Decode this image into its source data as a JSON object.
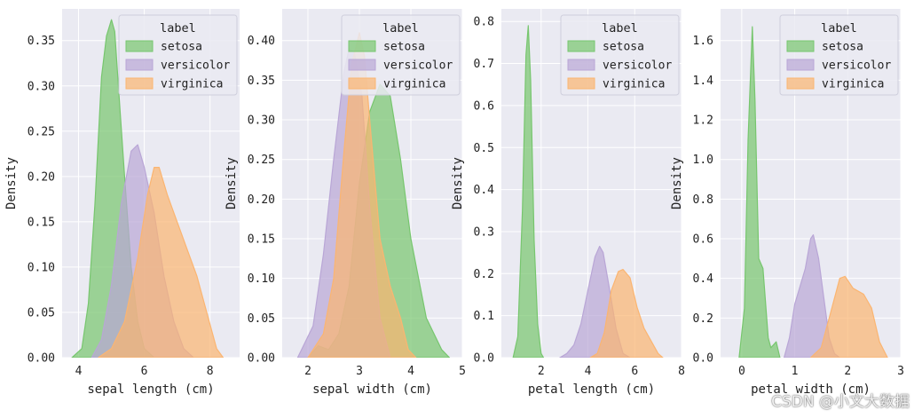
{
  "colors": {
    "setosa": "#77c66e",
    "versicolor": "#b9a6d6",
    "virginica": "#fbb571",
    "panel_bg": "#eaeaf2",
    "grid": "#ffffff"
  },
  "watermark": "CSDN @小文大数据",
  "chart_data": [
    {
      "type": "area",
      "xlabel": "sepal length (cm)",
      "ylabel": "Density",
      "xlim": [
        3.5,
        8.9
      ],
      "ylim": [
        0,
        0.385
      ],
      "xticks": [
        4,
        6,
        8
      ],
      "yticks": [
        0,
        0.05,
        0.1,
        0.15,
        0.2,
        0.25,
        0.3,
        0.35
      ],
      "ytick_labels": [
        "0.00",
        "0.05",
        "0.10",
        "0.15",
        "0.20",
        "0.25",
        "0.30",
        "0.35"
      ],
      "legend": {
        "title": "label",
        "position": "top-right",
        "entries": [
          "setosa",
          "versicolor",
          "virginica"
        ]
      },
      "series": [
        {
          "name": "setosa",
          "x": [
            3.8,
            4.1,
            4.3,
            4.5,
            4.7,
            4.85,
            5.0,
            5.1,
            5.25,
            5.4,
            5.6,
            5.8,
            6.0,
            6.3
          ],
          "y": [
            0,
            0.01,
            0.06,
            0.17,
            0.31,
            0.355,
            0.373,
            0.36,
            0.28,
            0.2,
            0.1,
            0.04,
            0.01,
            0
          ]
        },
        {
          "name": "versicolor",
          "x": [
            4.4,
            4.7,
            5.0,
            5.3,
            5.6,
            5.8,
            6.0,
            6.3,
            6.6,
            6.9,
            7.2,
            7.5
          ],
          "y": [
            0,
            0.02,
            0.08,
            0.17,
            0.228,
            0.235,
            0.21,
            0.16,
            0.09,
            0.04,
            0.01,
            0
          ]
        },
        {
          "name": "virginica",
          "x": [
            4.6,
            5.0,
            5.4,
            5.8,
            6.1,
            6.3,
            6.45,
            6.7,
            7.0,
            7.3,
            7.6,
            7.9,
            8.2,
            8.4
          ],
          "y": [
            0,
            0.01,
            0.04,
            0.11,
            0.18,
            0.21,
            0.21,
            0.18,
            0.15,
            0.12,
            0.09,
            0.05,
            0.01,
            0
          ]
        }
      ]
    },
    {
      "type": "area",
      "xlabel": "sepal width (cm)",
      "ylabel": "Density",
      "xlim": [
        1.5,
        5.0
      ],
      "ylim": [
        0,
        0.44
      ],
      "xticks": [
        2,
        3,
        4,
        5
      ],
      "yticks": [
        0,
        0.05,
        0.1,
        0.15,
        0.2,
        0.25,
        0.3,
        0.35,
        0.4
      ],
      "ytick_labels": [
        "0.00",
        "0.05",
        "0.10",
        "0.15",
        "0.20",
        "0.25",
        "0.30",
        "0.35",
        "0.40"
      ],
      "legend": {
        "title": "label",
        "position": "top-right",
        "entries": [
          "setosa",
          "versicolor",
          "virginica"
        ]
      },
      "series": [
        {
          "name": "setosa",
          "x": [
            2.0,
            2.2,
            2.4,
            2.6,
            2.8,
            3.0,
            3.2,
            3.4,
            3.6,
            3.8,
            4.0,
            4.3,
            4.6,
            4.75
          ],
          "y": [
            0,
            0.015,
            0.01,
            0.03,
            0.09,
            0.22,
            0.31,
            0.345,
            0.33,
            0.25,
            0.15,
            0.05,
            0.01,
            0
          ]
        },
        {
          "name": "versicolor",
          "x": [
            1.8,
            2.1,
            2.3,
            2.5,
            2.7,
            2.8,
            2.9,
            3.05,
            3.2,
            3.4,
            3.6
          ],
          "y": [
            0,
            0.04,
            0.13,
            0.25,
            0.36,
            0.39,
            0.385,
            0.33,
            0.19,
            0.05,
            0
          ]
        },
        {
          "name": "virginica",
          "x": [
            2.0,
            2.3,
            2.5,
            2.7,
            2.85,
            3.0,
            3.1,
            3.2,
            3.4,
            3.6,
            3.8,
            3.95,
            4.1
          ],
          "y": [
            0,
            0.03,
            0.1,
            0.26,
            0.37,
            0.41,
            0.38,
            0.3,
            0.15,
            0.09,
            0.05,
            0.01,
            0
          ]
        }
      ]
    },
    {
      "type": "area",
      "xlabel": "petal length (cm)",
      "ylabel": "Density",
      "xlim": [
        0.3,
        8.0
      ],
      "ylim": [
        0,
        0.83
      ],
      "xticks": [
        2,
        4,
        6,
        8
      ],
      "yticks": [
        0,
        0.1,
        0.2,
        0.3,
        0.4,
        0.5,
        0.6,
        0.7,
        0.8
      ],
      "ytick_labels": [
        "0.0",
        "0.1",
        "0.2",
        "0.3",
        "0.4",
        "0.5",
        "0.6",
        "0.7",
        "0.8"
      ],
      "legend": {
        "title": "label",
        "position": "top-right",
        "entries": [
          "setosa",
          "versicolor",
          "virginica"
        ]
      },
      "series": [
        {
          "name": "setosa",
          "x": [
            0.8,
            1.0,
            1.2,
            1.35,
            1.45,
            1.55,
            1.7,
            1.85,
            2.0,
            2.1
          ],
          "y": [
            0,
            0.05,
            0.35,
            0.72,
            0.79,
            0.66,
            0.28,
            0.08,
            0.01,
            0
          ]
        },
        {
          "name": "versicolor",
          "x": [
            2.8,
            3.1,
            3.4,
            3.7,
            4.0,
            4.3,
            4.5,
            4.65,
            4.9,
            5.2,
            5.5,
            5.8
          ],
          "y": [
            0,
            0.01,
            0.03,
            0.08,
            0.16,
            0.24,
            0.265,
            0.25,
            0.17,
            0.07,
            0.01,
            0
          ]
        },
        {
          "name": "virginica",
          "x": [
            4.1,
            4.4,
            4.7,
            5.0,
            5.3,
            5.5,
            5.8,
            6.1,
            6.4,
            6.7,
            7.0,
            7.2
          ],
          "y": [
            0,
            0.01,
            0.06,
            0.16,
            0.205,
            0.21,
            0.19,
            0.12,
            0.07,
            0.04,
            0.01,
            0
          ]
        }
      ]
    },
    {
      "type": "area",
      "xlabel": "petal width (cm)",
      "ylabel": "Density",
      "xlim": [
        -0.4,
        3.0
      ],
      "ylim": [
        0,
        1.76
      ],
      "xticks": [
        0,
        1,
        2,
        3
      ],
      "yticks": [
        0,
        0.2,
        0.4,
        0.6,
        0.8,
        1.0,
        1.2,
        1.4,
        1.6
      ],
      "ytick_labels": [
        "0.0",
        "0.2",
        "0.4",
        "0.6",
        "0.8",
        "1.0",
        "1.2",
        "1.4",
        "1.6"
      ],
      "legend": {
        "title": "label",
        "position": "top-right",
        "entries": [
          "setosa",
          "versicolor",
          "virginica"
        ]
      },
      "series": [
        {
          "name": "setosa",
          "x": [
            -0.05,
            0.05,
            0.12,
            0.2,
            0.25,
            0.32,
            0.4,
            0.5,
            0.55,
            0.65,
            0.72
          ],
          "y": [
            0,
            0.25,
            1.1,
            1.67,
            1.3,
            0.5,
            0.45,
            0.1,
            0.05,
            0.08,
            0
          ]
        },
        {
          "name": "versicolor",
          "x": [
            0.8,
            0.9,
            1.0,
            1.1,
            1.2,
            1.3,
            1.35,
            1.45,
            1.55,
            1.65,
            1.75,
            1.85
          ],
          "y": [
            0,
            0.1,
            0.27,
            0.36,
            0.45,
            0.6,
            0.62,
            0.5,
            0.3,
            0.1,
            0.02,
            0
          ]
        },
        {
          "name": "virginica",
          "x": [
            1.3,
            1.5,
            1.7,
            1.85,
            1.95,
            2.1,
            2.3,
            2.45,
            2.6,
            2.75
          ],
          "y": [
            0,
            0.05,
            0.25,
            0.4,
            0.41,
            0.35,
            0.32,
            0.25,
            0.08,
            0
          ]
        }
      ]
    }
  ]
}
